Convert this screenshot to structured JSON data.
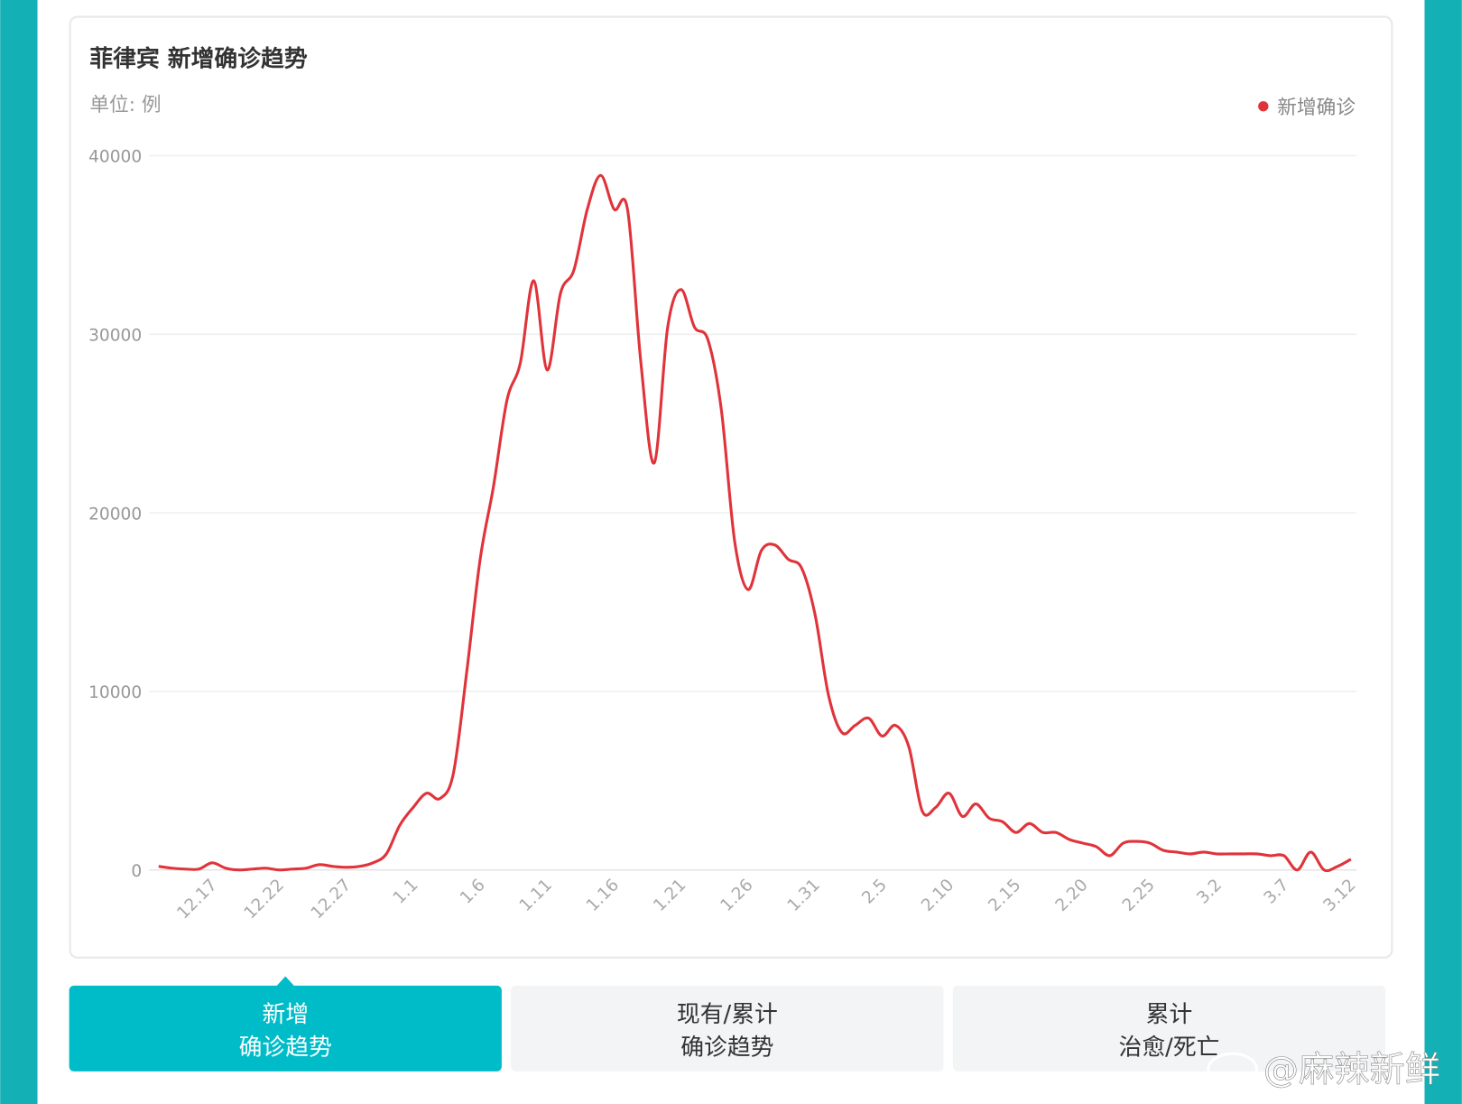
{
  "chart_data": {
    "type": "line",
    "title": "菲律宾 新增确诊趋势",
    "subtitle": "单位: 例",
    "categories": [
      null,
      null,
      null,
      null,
      "12.17",
      null,
      null,
      null,
      null,
      "12.22",
      null,
      null,
      null,
      null,
      "12.27",
      null,
      null,
      null,
      null,
      "1.1",
      null,
      null,
      null,
      null,
      "1.6",
      null,
      null,
      null,
      null,
      "1.11",
      null,
      null,
      null,
      null,
      "1.16",
      null,
      null,
      null,
      null,
      "1.21",
      null,
      null,
      null,
      null,
      "1.26",
      null,
      null,
      null,
      null,
      "1.31",
      null,
      null,
      null,
      null,
      "2.5",
      null,
      null,
      null,
      null,
      "2.10",
      null,
      null,
      null,
      null,
      "2.15",
      null,
      null,
      null,
      null,
      "2.20",
      null,
      null,
      null,
      null,
      "2.25",
      null,
      null,
      null,
      null,
      "3.2",
      null,
      null,
      null,
      null,
      "3.7",
      null,
      null,
      null,
      null,
      "3.12"
    ],
    "series": [
      {
        "name": "新增确诊",
        "color": "#e0333a",
        "values": [
          200,
          100,
          50,
          50,
          400,
          100,
          0,
          50,
          100,
          0,
          50,
          100,
          300,
          200,
          150,
          200,
          400,
          900,
          2500,
          3500,
          4300,
          4000,
          5400,
          11100,
          17400,
          21500,
          26300,
          28400,
          33000,
          28000,
          32300,
          33600,
          37000,
          38900,
          37000,
          37000,
          28400,
          22800,
          30400,
          32500,
          30400,
          29700,
          25800,
          18400,
          15700,
          17900,
          18200,
          17400,
          16900,
          14300,
          9800,
          7700,
          8100,
          8500,
          7500,
          8100,
          6900,
          3300,
          3500,
          4300,
          3000,
          3700,
          2900,
          2700,
          2100,
          2600,
          2100,
          2100,
          1700,
          1500,
          1300,
          800,
          1500,
          1600,
          1500,
          1100,
          1000,
          900,
          1000,
          900,
          900,
          900,
          900,
          800,
          800,
          0,
          1000,
          0,
          200,
          600
        ]
      }
    ],
    "ylim": [
      0,
      40000
    ],
    "yticks": [
      0,
      10000,
      20000,
      30000,
      40000
    ],
    "grid": true,
    "legend": "top-right"
  },
  "tabs": [
    {
      "lines": [
        "新增",
        "确诊趋势"
      ],
      "active": true
    },
    {
      "lines": [
        "现有/累计",
        "确诊趋势"
      ],
      "active": false
    },
    {
      "lines": [
        "累计",
        "治愈/死亡"
      ],
      "active": false
    }
  ],
  "watermark": "@麻辣新鲜"
}
